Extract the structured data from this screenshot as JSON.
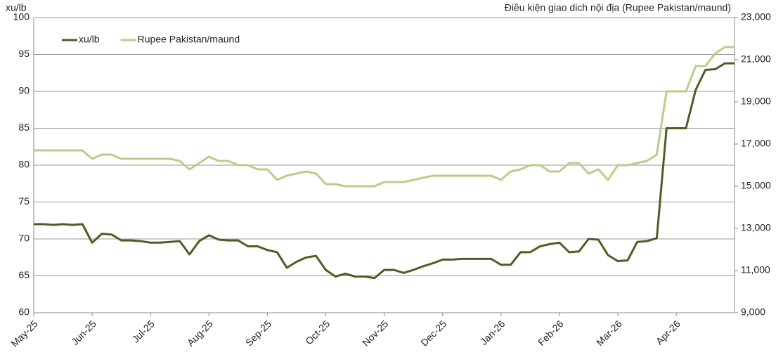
{
  "chart_data": {
    "type": "line",
    "y_label": "xu/lb",
    "y2_label": "Điều kiện giao dich nội địa (Rupee Pakistan/maund)",
    "categories": [
      "May-25",
      null,
      null,
      null,
      null,
      null,
      "Jun-25",
      null,
      null,
      null,
      null,
      null,
      "Jul-25",
      null,
      null,
      null,
      null,
      null,
      "Aug-25",
      null,
      null,
      null,
      null,
      null,
      "Sep-25",
      null,
      null,
      null,
      null,
      null,
      "Oct-25",
      null,
      null,
      null,
      null,
      null,
      "Nov-25",
      null,
      null,
      null,
      null,
      null,
      "Dec-25",
      null,
      null,
      null,
      null,
      null,
      "Jan-26",
      null,
      null,
      null,
      null,
      null,
      "Feb-26",
      null,
      null,
      null,
      null,
      null,
      "Mar-26",
      null,
      null,
      null,
      null,
      null,
      "Apr-26",
      null,
      null,
      null,
      null,
      null,
      null
    ],
    "series": [
      {
        "name": "xu/lb",
        "color": "#4d5e25",
        "values": [
          72,
          72,
          71.9,
          72,
          71.9,
          72,
          69.5,
          70.7,
          70.6,
          69.8,
          69.8,
          69.7,
          69.5,
          69.5,
          69.6,
          69.7,
          67.9,
          69.7,
          70.5,
          69.9,
          69.8,
          69.8,
          69,
          69,
          68.5,
          68.2,
          66.1,
          66.9,
          67.5,
          67.7,
          65.8,
          64.9,
          65.3,
          64.9,
          64.9,
          64.7,
          65.8,
          65.8,
          65.4,
          65.8,
          66.3,
          66.7,
          67.2,
          67.2,
          67.3,
          67.3,
          67.3,
          67.3,
          66.5,
          66.5,
          68.2,
          68.2,
          69,
          69.3,
          69.5,
          68.2,
          68.3,
          70,
          69.9,
          67.8,
          67,
          67.1,
          69.6,
          69.7,
          70.1,
          85,
          85,
          85,
          90.2,
          92.9,
          93,
          93.8,
          93.8
        ]
      },
      {
        "name": "Rupee Pakistan/maund",
        "color": "#b5d08a",
        "axis": "y2",
        "values": [
          16700,
          16700,
          16700,
          16700,
          16700,
          16700,
          16300,
          16500,
          16500,
          16300,
          16300,
          16300,
          16300,
          16300,
          16300,
          16200,
          15800,
          16100,
          16400,
          16200,
          16200,
          16000,
          16000,
          15800,
          15800,
          15300,
          15500,
          15600,
          15700,
          15600,
          15100,
          15100,
          15000,
          15000,
          15000,
          15000,
          15200,
          15200,
          15200,
          15300,
          15400,
          15500,
          15500,
          15500,
          15500,
          15500,
          15500,
          15500,
          15300,
          15700,
          15800,
          16000,
          16000,
          15700,
          15700,
          16100,
          16100,
          15600,
          15800,
          15300,
          16000,
          16000,
          16100,
          16200,
          16500,
          19500,
          19500,
          19500,
          20700,
          20700,
          21300,
          21600,
          21600
        ]
      }
    ],
    "ylim": [
      60,
      100
    ],
    "yticks": [
      60,
      65,
      70,
      75,
      80,
      85,
      90,
      95,
      100
    ],
    "y2lim": [
      9000,
      23000
    ],
    "y2ticks": [
      {
        "value": 9000,
        "label": "9,000"
      },
      {
        "value": 11000,
        "label": "11,000"
      },
      {
        "value": 13000,
        "label": "13,000"
      },
      {
        "value": 15000,
        "label": "15,000"
      },
      {
        "value": 17000,
        "label": "17,000"
      },
      {
        "value": 19000,
        "label": "19,000"
      },
      {
        "value": 21000,
        "label": "21,000"
      },
      {
        "value": 23000,
        "label": "23,000"
      }
    ],
    "grid": true,
    "legend": "top-left"
  }
}
